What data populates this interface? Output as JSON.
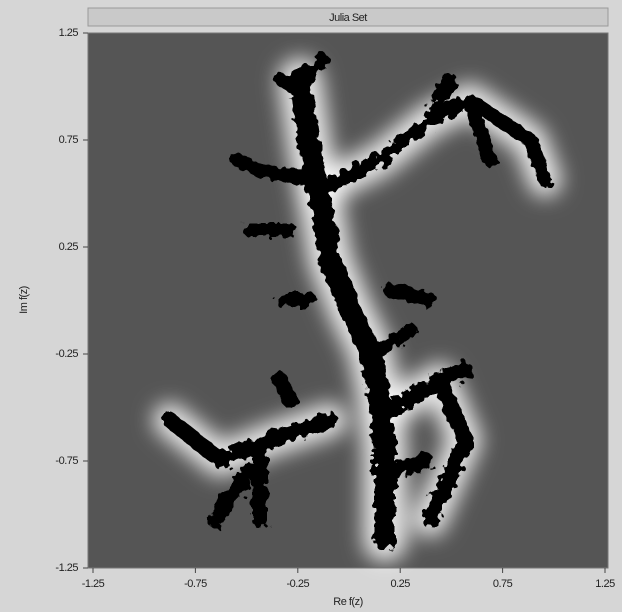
{
  "chart_data": {
    "type": "image",
    "title": "Julia Set",
    "x_label": "Re f(z)",
    "y_label": "Im f(z)",
    "xlim": [
      -1.25,
      1.25
    ],
    "ylim": [
      -1.25,
      1.25
    ],
    "xticks": [
      -1.25,
      -0.75,
      -0.25,
      0.25,
      0.75,
      1.25
    ],
    "yticks": [
      -1.25,
      -0.75,
      -0.25,
      0.25,
      0.75,
      1.25
    ]
  }
}
